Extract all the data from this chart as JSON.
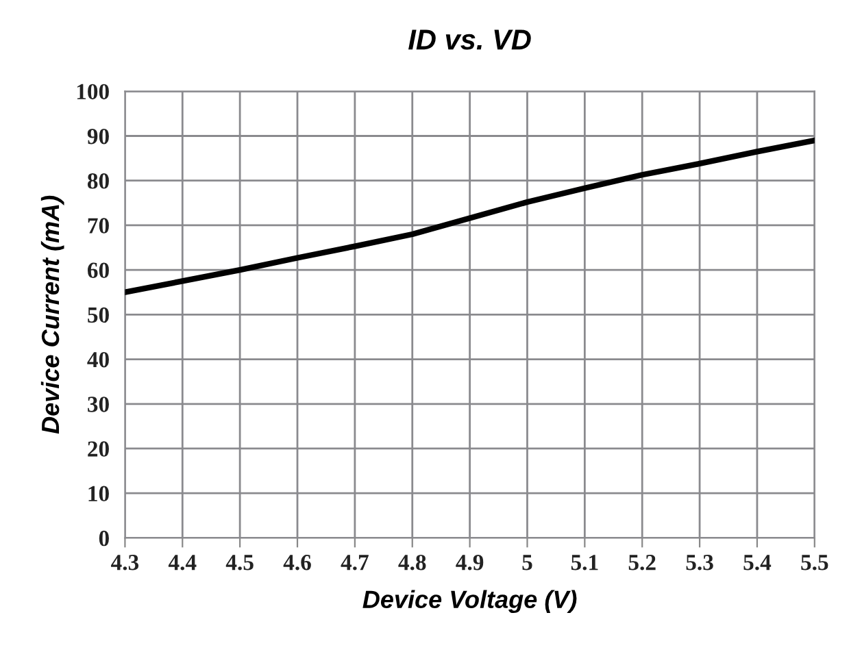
{
  "chart_data": {
    "type": "line",
    "title": "ID vs. VD",
    "xlabel": "Device Voltage (V)",
    "ylabel": "Device Current (mA)",
    "x": [
      4.3,
      4.4,
      4.5,
      4.6,
      4.7,
      4.8,
      4.9,
      5.0,
      5.1,
      5.2,
      5.3,
      5.4,
      5.5
    ],
    "series": [
      {
        "color": "#000000",
        "values": [
          55,
          57.5,
          60,
          62.7,
          65.3,
          68,
          71.6,
          75.2,
          78.3,
          81.3,
          83.8,
          86.5,
          89
        ]
      }
    ],
    "xlim": [
      4.3,
      5.5
    ],
    "xticks": [
      4.3,
      4.4,
      4.5,
      4.6,
      4.7,
      4.8,
      4.9,
      5,
      5.1,
      5.2,
      5.3,
      5.4,
      5.5
    ],
    "ylim": [
      0,
      100
    ],
    "yticks": [
      0,
      10,
      20,
      30,
      40,
      50,
      60,
      70,
      80,
      90,
      100
    ],
    "grid": true,
    "legend": false,
    "marker": "none",
    "line_style": "solid"
  }
}
